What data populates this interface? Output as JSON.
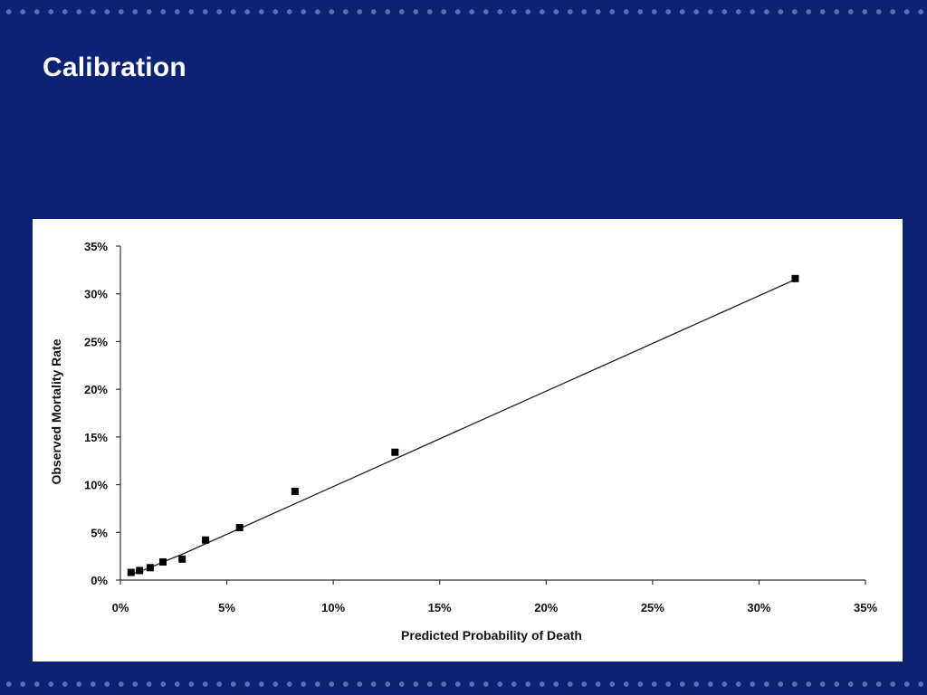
{
  "slide": {
    "title": "Calibration",
    "background_color": "#0d2272",
    "accent_dot_color": "#5b6fb0"
  },
  "chart_data": {
    "type": "scatter",
    "title": "",
    "xlabel": "Predicted Probability of Death",
    "ylabel": "Observed Mortality Rate",
    "xlim": [
      0,
      35
    ],
    "ylim": [
      0,
      35
    ],
    "x_ticks": [
      "0%",
      "5%",
      "10%",
      "15%",
      "20%",
      "25%",
      "30%",
      "35%"
    ],
    "y_ticks": [
      "0%",
      "5%",
      "10%",
      "15%",
      "20%",
      "25%",
      "30%",
      "35%"
    ],
    "grid": false,
    "series": [
      {
        "type": "scatter",
        "x": [
          0.5,
          0.9,
          1.4,
          2.0,
          2.9,
          4.0,
          5.6,
          8.2,
          12.9,
          31.7
        ],
        "y": [
          0.8,
          1.0,
          1.3,
          1.9,
          2.2,
          4.2,
          5.5,
          9.3,
          13.4,
          31.6
        ]
      },
      {
        "type": "line",
        "x": [
          0.5,
          0.9,
          1.4,
          2.0,
          2.9,
          4.0,
          5.6,
          8.2,
          12.9,
          31.7
        ],
        "y": [
          0.6,
          0.9,
          1.3,
          1.9,
          2.7,
          3.8,
          5.4,
          8.0,
          12.7,
          31.5
        ]
      }
    ]
  }
}
